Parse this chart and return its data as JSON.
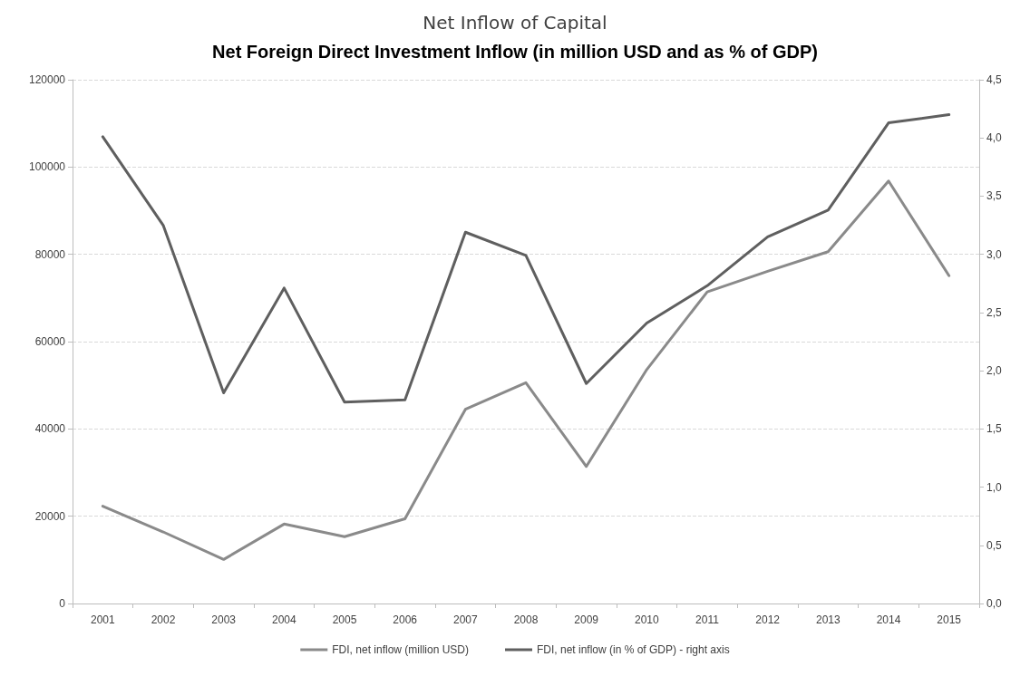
{
  "chart_data": {
    "type": "line",
    "title": "Net Inflow of Capital",
    "subtitle": "Net Foreign Direct Investment Inflow (in million USD and as % of GDP)",
    "categories": [
      "2001",
      "2002",
      "2003",
      "2004",
      "2005",
      "2006",
      "2007",
      "2008",
      "2009",
      "2010",
      "2011",
      "2012",
      "2013",
      "2014",
      "2015"
    ],
    "series": [
      {
        "name": "FDI, net inflow (million USD)",
        "color": "#8a8a8a",
        "values": [
          22300,
          16400,
          10100,
          18200,
          15300,
          19400,
          44500,
          50600,
          31400,
          53600,
          71400,
          76100,
          80600,
          96800,
          75100
        ]
      },
      {
        "name": "FDI, net inflow (in % of GDP) - right axis",
        "color": "#5f5f5f",
        "axis": "y2",
        "values": [
          4.01,
          3.25,
          1.81,
          2.71,
          1.73,
          1.75,
          3.19,
          2.99,
          1.89,
          2.41,
          2.73,
          3.15,
          3.38,
          4.13,
          4.2
        ]
      }
    ],
    "ylim": [
      0,
      120000
    ],
    "yticks": [
      0,
      20000,
      40000,
      60000,
      80000,
      100000,
      120000
    ],
    "y2lim": [
      0,
      4.5
    ],
    "y2ticks": [
      {
        "value": 0,
        "label": "0,0"
      },
      {
        "value": 0.5,
        "label": "0,5"
      },
      {
        "value": 1,
        "label": "1,0"
      },
      {
        "value": 1.5,
        "label": "1,5"
      },
      {
        "value": 2,
        "label": "2,0"
      },
      {
        "value": 2.5,
        "label": "2,5"
      },
      {
        "value": 3,
        "label": "3,0"
      },
      {
        "value": 3.5,
        "label": "3,5"
      },
      {
        "value": 4,
        "label": "4,0"
      },
      {
        "value": 4.5,
        "label": "4,5"
      }
    ],
    "grid": "y",
    "legend": "bottom",
    "marker": "none",
    "line_style": "solid"
  }
}
